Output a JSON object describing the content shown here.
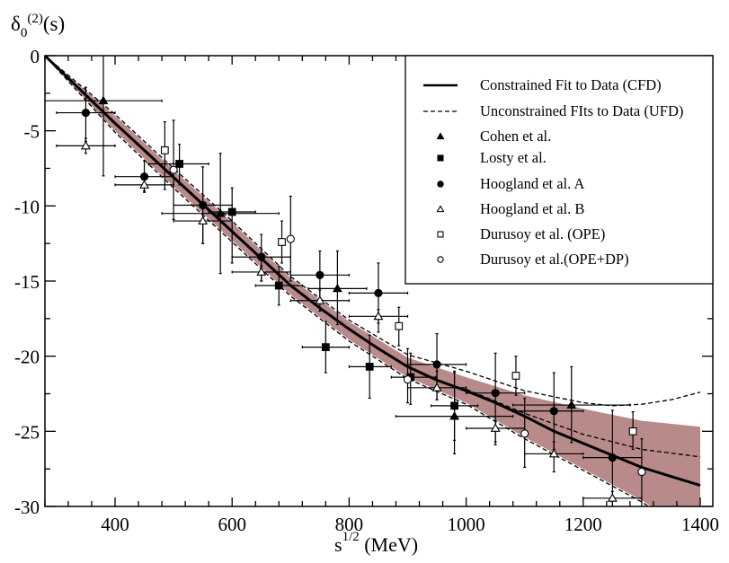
{
  "chart_data": {
    "type": "scatter",
    "title": "",
    "ylabel": {
      "base": "δ",
      "sub": "0",
      "sup": "(2)",
      "tail": "(s)"
    },
    "xlabel": {
      "base": "s",
      "sup": "1/2",
      "tail": " (MeV)"
    },
    "xlim": [
      280,
      1420
    ],
    "ylim": [
      -30,
      0
    ],
    "xticks": [
      400,
      600,
      800,
      1000,
      1200,
      1400
    ],
    "xticks_minor_step": 40,
    "yticks": [
      0,
      -5,
      -10,
      -15,
      -20,
      -25,
      -30
    ],
    "yticks_minor_step": 2.5,
    "grid": false,
    "legend_position": "top-right",
    "band_color": "#b98a8a",
    "band": {
      "upper": [
        [
          280,
          0
        ],
        [
          400,
          -4.0
        ],
        [
          500,
          -7.6
        ],
        [
          600,
          -11.1
        ],
        [
          700,
          -14.8
        ],
        [
          800,
          -17.7
        ],
        [
          900,
          -20.1
        ],
        [
          1000,
          -21.4
        ],
        [
          1100,
          -22.6
        ],
        [
          1200,
          -23.5
        ],
        [
          1300,
          -24.3
        ],
        [
          1400,
          -24.7
        ]
      ],
      "lower": [
        [
          280,
          0
        ],
        [
          400,
          -5.0
        ],
        [
          500,
          -8.7
        ],
        [
          600,
          -12.3
        ],
        [
          700,
          -15.9
        ],
        [
          800,
          -18.9
        ],
        [
          900,
          -21.4
        ],
        [
          1000,
          -23.1
        ],
        [
          1100,
          -25.4
        ],
        [
          1200,
          -27.5
        ],
        [
          1300,
          -29.6
        ],
        [
          1400,
          -32.0
        ]
      ]
    },
    "lines": [
      {
        "name": "Constrained Fit to Data (CFD)",
        "style": "solid",
        "points": [
          [
            280,
            0
          ],
          [
            400,
            -4.5
          ],
          [
            500,
            -8.1
          ],
          [
            600,
            -11.7
          ],
          [
            650,
            -13.5
          ],
          [
            700,
            -15.3
          ],
          [
            750,
            -16.8
          ],
          [
            800,
            -18.2
          ],
          [
            850,
            -19.5
          ],
          [
            900,
            -20.7
          ],
          [
            950,
            -21.6
          ],
          [
            1000,
            -22.3
          ],
          [
            1050,
            -23.1
          ],
          [
            1100,
            -24.0
          ],
          [
            1150,
            -25.0
          ],
          [
            1200,
            -25.8
          ],
          [
            1250,
            -26.6
          ],
          [
            1300,
            -27.4
          ],
          [
            1400,
            -28.6
          ]
        ]
      },
      {
        "name": "Unconstrained FIts to Data (UFD)",
        "style": "dashed",
        "curves": [
          [
            [
              280,
              0
            ],
            [
              400,
              -3.9
            ],
            [
              500,
              -7.5
            ],
            [
              600,
              -11.0
            ],
            [
              700,
              -14.7
            ],
            [
              800,
              -17.6
            ],
            [
              900,
              -19.9
            ],
            [
              1000,
              -21.0
            ],
            [
              1100,
              -22.3
            ],
            [
              1200,
              -23.1
            ],
            [
              1250,
              -23.3
            ],
            [
              1300,
              -23.2
            ],
            [
              1350,
              -22.9
            ],
            [
              1400,
              -22.4
            ]
          ],
          [
            [
              1000,
              -22.2
            ],
            [
              1050,
              -23.0
            ],
            [
              1100,
              -23.8
            ],
            [
              1200,
              -25.2
            ],
            [
              1300,
              -26.2
            ],
            [
              1400,
              -26.7
            ]
          ],
          [
            [
              280,
              0
            ],
            [
              400,
              -5.1
            ],
            [
              500,
              -8.8
            ],
            [
              600,
              -12.4
            ],
            [
              700,
              -16.0
            ],
            [
              800,
              -19.0
            ],
            [
              900,
              -21.5
            ],
            [
              1000,
              -23.2
            ],
            [
              1100,
              -25.5
            ],
            [
              1200,
              -27.6
            ],
            [
              1300,
              -29.7
            ],
            [
              1350,
              -31.0
            ]
          ]
        ]
      }
    ],
    "series": [
      {
        "name": "Cohen et al.",
        "marker": "triangle-filled",
        "points": [
          [
            380,
            -3.0,
            280,
            480,
            0,
            -8.0
          ],
          [
            580,
            -10.5,
            480,
            680,
            -6.5,
            -14.5
          ],
          [
            780,
            -15.5,
            730,
            830,
            -13.0,
            -17.9
          ],
          [
            980,
            -24.0,
            880,
            1080,
            -21.1,
            -26.5
          ],
          [
            1180,
            -23.25,
            1080,
            1280,
            -20.7,
            -25.75
          ]
        ]
      },
      {
        "name": "Losty et al.",
        "marker": "square-filled",
        "points": [
          [
            510,
            -7.2,
            457,
            560,
            -5.9,
            -8.6
          ],
          [
            600,
            -10.4,
            560,
            640,
            -8.8,
            -13.8
          ],
          [
            680,
            -15.3,
            640,
            720,
            -14.0,
            -16.6
          ],
          [
            760,
            -19.4,
            720,
            800,
            -17.7,
            -21.1
          ],
          [
            835,
            -20.7,
            800,
            872,
            -18.6,
            -22.8
          ],
          [
            905,
            -21.4,
            872,
            948,
            -19.8,
            -23.2
          ],
          [
            980,
            -23.3,
            940,
            1020,
            -21.0,
            -25.6
          ]
        ]
      },
      {
        "name": "Hoogland et al. A",
        "marker": "circle-filled",
        "points": [
          [
            350,
            -3.8,
            300,
            400,
            -2.1,
            -5.7
          ],
          [
            450,
            -8.05,
            400,
            500,
            -7.0,
            -9.0
          ],
          [
            550,
            -9.95,
            500,
            600,
            -7.4,
            -12.5
          ],
          [
            650,
            -13.4,
            600,
            700,
            -11.9,
            -15.0
          ],
          [
            750,
            -14.6,
            700,
            800,
            -13.0,
            -16.3
          ],
          [
            850,
            -15.8,
            800,
            900,
            -13.8,
            -17.8
          ],
          [
            950,
            -20.55,
            900,
            1000,
            -18.5,
            -22.9
          ],
          [
            1050,
            -22.45,
            1000,
            1100,
            -19.8,
            -25.7
          ],
          [
            1150,
            -23.65,
            1080,
            1200,
            -21.1,
            -26.2
          ],
          [
            1250,
            -26.75,
            1200,
            1300,
            -23.6,
            -30.0
          ]
        ]
      },
      {
        "name": "Hoogland et al. B",
        "marker": "triangle-open",
        "points": [
          [
            350,
            -6.0,
            300,
            400,
            -5.5,
            -6.5
          ],
          [
            450,
            -8.6,
            400,
            500,
            -8.2,
            -9.1
          ],
          [
            550,
            -11.0,
            500,
            600,
            -10.5,
            -12.5
          ],
          [
            650,
            -14.4,
            600,
            700,
            -14.0,
            -15.0
          ],
          [
            750,
            -16.3,
            700,
            800,
            -15.6,
            -17.0
          ],
          [
            850,
            -17.35,
            800,
            900,
            -16.9,
            -18.4
          ],
          [
            950,
            -22.1,
            900,
            1000,
            -21.0,
            -22.9
          ],
          [
            1050,
            -24.8,
            1000,
            1100,
            -24.3,
            -25.9
          ],
          [
            1150,
            -26.5,
            1100,
            1200,
            -25.7,
            -27.7
          ],
          [
            1250,
            -29.45,
            1200,
            1300,
            -29.0,
            -30.0
          ]
        ]
      },
      {
        "name": "Durusoy et al. (OPE)",
        "marker": "square-open",
        "points": [
          [
            485,
            -6.3,
            485,
            485,
            -4.4,
            -8.9
          ],
          [
            685,
            -12.4,
            685,
            685,
            -11.0,
            -13.8
          ],
          [
            885,
            -18.0,
            885,
            885,
            -16.75,
            -19.3
          ],
          [
            1085,
            -21.3,
            1085,
            1085,
            -20.0,
            -22.6
          ],
          [
            1285,
            -25.0,
            1285,
            1285,
            -23.7,
            -26.2
          ]
        ]
      },
      {
        "name": "Durusoy et al.(OPE+DP)",
        "marker": "circle-open",
        "points": [
          [
            500,
            -7.6,
            500,
            500,
            -4.3,
            -10.9
          ],
          [
            700,
            -12.2,
            700,
            700,
            -9.35,
            -15.0
          ],
          [
            900,
            -21.55,
            900,
            900,
            -19.5,
            -23.1
          ],
          [
            1100,
            -25.15,
            1100,
            1100,
            -22.8,
            -27.4
          ],
          [
            1300,
            -27.7,
            1300,
            1300,
            -25.5,
            -30.0
          ]
        ]
      }
    ]
  }
}
